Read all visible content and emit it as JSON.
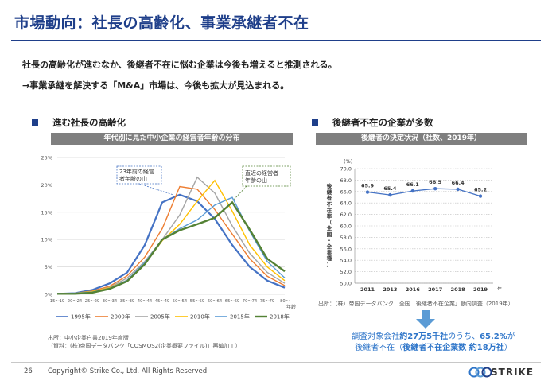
{
  "header": {
    "title": "市場動向：社長の高齢化、事業承継者不在"
  },
  "lead": {
    "line1": "社長の高齢化が進むなか、後継者不在に悩む企業は今後も増えると推測される。",
    "line2": "→事業承継を解決する「M&A」市場は、今後も拡大が見込まれる。"
  },
  "left": {
    "section_title": "進む社長の高齢化",
    "banner": "年代別に見た中小企業の経営者年齢の分布",
    "annot_1995": [
      "23年前の経営",
      "者年齢の山"
    ],
    "annot_2018": [
      "直近の経営者",
      "年齢の山"
    ],
    "source_line1": "出所：中小企業白書2019年度版",
    "source_line2": "（資料：(株)帝国データバンク「COSMOS2(企業概要ファイル)」再編加工）"
  },
  "right": {
    "section_title": "後継者不在の企業が多数",
    "banner": "後継者の決定状況（社数、2019年）",
    "source": "出所：（株）帝国データバンク　全国「後継者不在企業」動向調査（2019年）",
    "callout_line1_pre": "調査対象会社",
    "callout_line1_b1": "約27万5千社",
    "callout_line1_mid": "のうち、",
    "callout_line1_b2": "65.2%",
    "callout_line1_post": "が",
    "callout_line2_pre": "後継者不在（",
    "callout_line2_b": "後継者不在企業数 約18万社",
    "callout_line2_post": "）"
  },
  "footer": {
    "page": "26",
    "copyright": "Copyright© Strike Co., Ltd. All Rights Reserved.",
    "logo_text": "STRIKE"
  },
  "colors": {
    "brand": "#1f3f8a",
    "accent_blue": "#2e75c9",
    "s1995": "#4472c4",
    "s2000": "#ed7d31",
    "s2005": "#a5a5a5",
    "s2010": "#ffc000",
    "s2015": "#5b9bd5",
    "s2018": "#548235"
  },
  "chart_data": [
    {
      "type": "line",
      "ylim": [
        0,
        25
      ],
      "yticks": [
        "0%",
        "5%",
        "10%",
        "15%",
        "20%",
        "25%"
      ],
      "yticks_values": [
        0,
        5,
        10,
        15,
        20,
        25
      ],
      "categories": [
        "15～19",
        "20～24",
        "25～29",
        "30～34",
        "35～39",
        "40～44",
        "45～49",
        "50～54",
        "55～59",
        "60～64",
        "65～69",
        "70～74",
        "75～79",
        "80～"
      ],
      "x_unit": "年齢",
      "grid": true,
      "legend": "bottom",
      "series": [
        {
          "name": "1995年",
          "color": "#4472c4",
          "values": [
            0.1,
            0.2,
            0.8,
            2.0,
            4.0,
            9.0,
            16.8,
            18.2,
            17.0,
            13.8,
            9.0,
            5.0,
            2.5,
            1.2
          ]
        },
        {
          "name": "2000年",
          "color": "#ed7d31",
          "values": [
            0.1,
            0.2,
            0.6,
            1.5,
            3.4,
            6.8,
            12.0,
            19.7,
            19.2,
            15.5,
            11.0,
            6.5,
            3.3,
            1.6
          ]
        },
        {
          "name": "2005年",
          "color": "#a5a5a5",
          "values": [
            0.1,
            0.2,
            0.5,
            1.3,
            3.0,
            6.0,
            10.0,
            14.5,
            21.4,
            18.5,
            12.5,
            7.5,
            4.0,
            2.0
          ]
        },
        {
          "name": "2010年",
          "color": "#ffc000",
          "values": [
            0.1,
            0.2,
            0.5,
            1.2,
            2.6,
            5.5,
            9.8,
            12.8,
            17.0,
            20.8,
            15.2,
            9.0,
            5.0,
            2.5
          ]
        },
        {
          "name": "2015年",
          "color": "#5b9bd5",
          "values": [
            0.1,
            0.2,
            0.4,
            1.1,
            2.6,
            5.8,
            10.0,
            12.0,
            13.6,
            16.3,
            17.7,
            11.5,
            6.0,
            3.0
          ]
        },
        {
          "name": "2018年",
          "color": "#548235",
          "values": [
            0.1,
            0.1,
            0.3,
            1.0,
            2.4,
            5.5,
            10.0,
            11.7,
            12.8,
            14.0,
            16.8,
            11.8,
            6.5,
            4.2
          ]
        }
      ]
    },
    {
      "type": "line",
      "ylabel": "後継者不在率（全国・全業種）",
      "yunit": "(%)",
      "ylim": [
        50,
        70
      ],
      "yticks": [
        "50.0",
        "52.0",
        "54.0",
        "56.0",
        "58.0",
        "60.0",
        "62.0",
        "64.0",
        "66.0",
        "68.0",
        "70.0"
      ],
      "yticks_values": [
        50,
        52,
        54,
        56,
        58,
        60,
        62,
        64,
        66,
        68,
        70
      ],
      "categories": [
        "2011",
        "2013",
        "2016",
        "2017",
        "2018",
        "2019"
      ],
      "x_unit": "年",
      "grid": true,
      "values": [
        65.9,
        65.4,
        66.1,
        66.5,
        66.4,
        65.2
      ],
      "value_labels": [
        "65.9",
        "65.4",
        "66.1",
        "66.5",
        "66.4",
        "65.2"
      ],
      "color": "#4472c4"
    }
  ]
}
